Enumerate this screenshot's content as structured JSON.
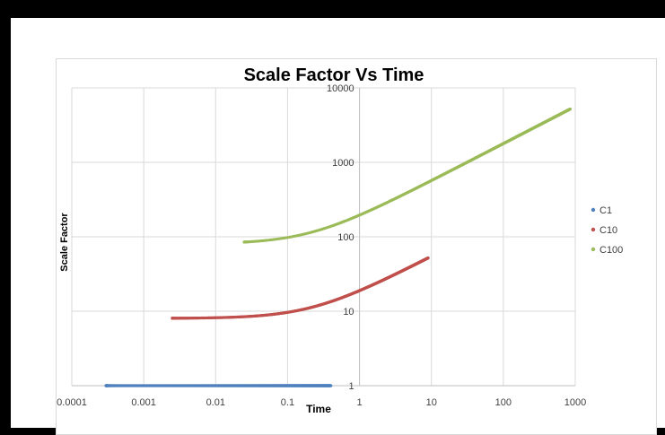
{
  "chart_data": {
    "type": "scatter",
    "title": "Scale Factor Vs Time",
    "xlabel": "Time",
    "ylabel": "Scale Factor",
    "x_scale": "log",
    "y_scale": "log",
    "xlim": [
      0.0001,
      1000
    ],
    "ylim": [
      1,
      10000
    ],
    "x_ticks": [
      "0.0001",
      "0.001",
      "0.01",
      "0.1",
      "1",
      "10",
      "100",
      "1000"
    ],
    "y_ticks": [
      "1",
      "10",
      "100",
      "1000",
      "10000"
    ],
    "grid": true,
    "legend_position": "right",
    "series": [
      {
        "name": "C1",
        "color": "#4f81bd",
        "x_range": [
          0.0003,
          0.4
        ],
        "y_start": 1.0,
        "y_end": 1.0,
        "note": "flat at 1"
      },
      {
        "name": "C10",
        "color": "#c0504d",
        "x_range": [
          0.0025,
          9
        ],
        "y_start": 8,
        "y_end": 52
      },
      {
        "name": "C100",
        "color": "#9bbb59",
        "x_range": [
          0.025,
          850
        ],
        "y_start": 80,
        "y_end": 5200
      }
    ]
  }
}
